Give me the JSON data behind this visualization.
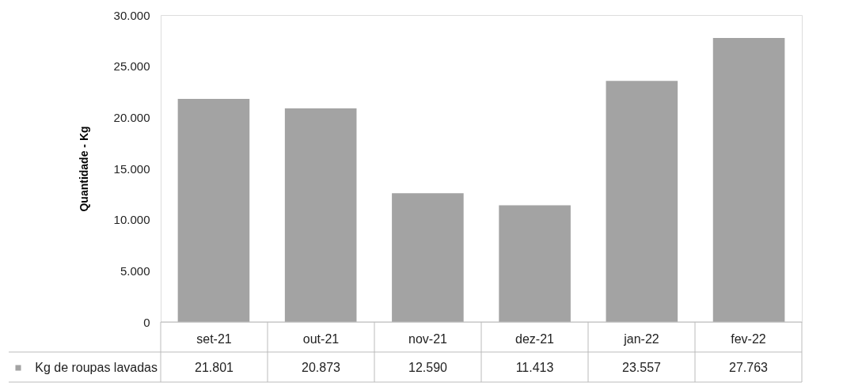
{
  "chart_data": {
    "type": "bar",
    "ylabel": "Quantidade - Kg",
    "categories": [
      "set-21",
      "out-21",
      "nov-21",
      "dez-21",
      "jan-22",
      "fev-22"
    ],
    "series": [
      {
        "name": "Kg de roupas lavadas",
        "color": "#a3a3a3",
        "values": [
          21801,
          20873,
          12590,
          11413,
          23557,
          27763
        ],
        "value_labels": [
          "21.801",
          "20.873",
          "12.590",
          "11.413",
          "23.557",
          "27.763"
        ]
      }
    ],
    "ylim": [
      0,
      30000
    ],
    "yticks": [
      {
        "value": 0,
        "label": "0"
      },
      {
        "value": 5000,
        "label": "5.000"
      },
      {
        "value": 10000,
        "label": "10.000"
      },
      {
        "value": 15000,
        "label": "15.000"
      },
      {
        "value": 20000,
        "label": "20.000"
      },
      {
        "value": 25000,
        "label": "25.000"
      },
      {
        "value": 30000,
        "label": "30.000"
      }
    ],
    "grid": false,
    "legend": "bottom"
  }
}
